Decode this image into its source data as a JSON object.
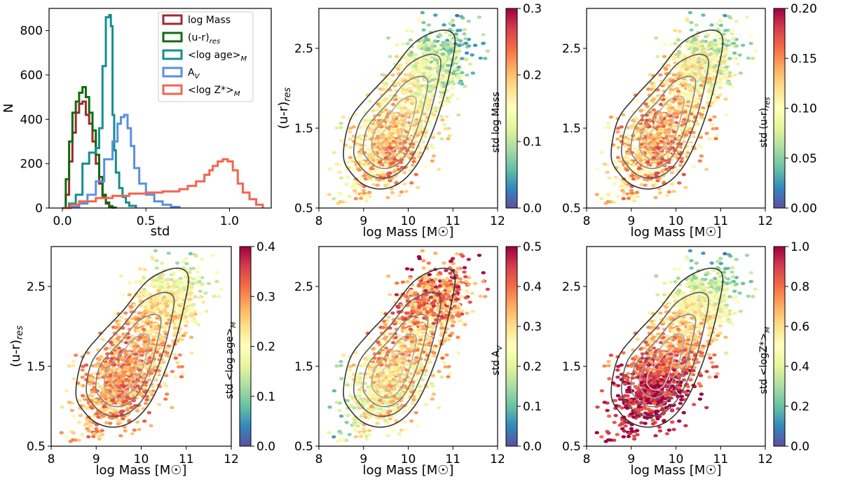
{
  "chart_data": [
    {
      "id": "hist",
      "type": "histogram",
      "xlabel": "std",
      "ylabel": "N",
      "xlim": [
        -0.08,
        1.25
      ],
      "ylim": [
        0,
        900
      ],
      "xticks": [
        "0.0",
        "0.5",
        "1.0"
      ],
      "xtick_values": [
        0.0,
        0.5,
        1.0
      ],
      "yticks": [
        "0",
        "200",
        "400",
        "600",
        "800"
      ],
      "ytick_values": [
        0,
        200,
        400,
        600,
        800
      ],
      "legend_position": "top-right",
      "series": [
        {
          "name": "log Mass",
          "legend": {
            "base": "log Mass",
            "sub": "",
            "tail": ""
          },
          "color": "#9e2a2b",
          "x": [
            0.0,
            0.02,
            0.04,
            0.06,
            0.08,
            0.1,
            0.12,
            0.14,
            0.16,
            0.18,
            0.2,
            0.22,
            0.24,
            0.26,
            0.28,
            0.3
          ],
          "y": [
            0,
            60,
            210,
            340,
            430,
            470,
            480,
            420,
            380,
            300,
            200,
            110,
            50,
            20,
            5,
            0
          ]
        },
        {
          "name": "(u-r)res",
          "legend": {
            "base": "(u-r)",
            "sub": "res",
            "tail": ""
          },
          "color": "#0f6b0f",
          "x": [
            0.0,
            0.02,
            0.04,
            0.06,
            0.08,
            0.1,
            0.12,
            0.14,
            0.16,
            0.18,
            0.2,
            0.22,
            0.24,
            0.26,
            0.28,
            0.3,
            0.32
          ],
          "y": [
            0,
            130,
            300,
            430,
            480,
            520,
            545,
            500,
            430,
            350,
            240,
            140,
            60,
            25,
            8,
            2,
            0
          ]
        },
        {
          "name": "<log age>M",
          "legend": {
            "base": "<log age>",
            "sub": "M",
            "tail": ""
          },
          "color": "#148f8f",
          "x": [
            0.0,
            0.04,
            0.08,
            0.12,
            0.16,
            0.2,
            0.22,
            0.24,
            0.26,
            0.28,
            0.29,
            0.3,
            0.31,
            0.32,
            0.34,
            0.36,
            0.38,
            0.4,
            0.44
          ],
          "y": [
            0,
            20,
            60,
            200,
            250,
            270,
            360,
            640,
            860,
            870,
            820,
            420,
            260,
            160,
            90,
            50,
            25,
            10,
            0
          ]
        },
        {
          "name": "AV",
          "legend": {
            "base": "A",
            "sub": "V",
            "tail": ""
          },
          "color": "#5b8fe0",
          "x": [
            0.0,
            0.05,
            0.1,
            0.15,
            0.2,
            0.25,
            0.3,
            0.33,
            0.35,
            0.37,
            0.39,
            0.41,
            0.43,
            0.46,
            0.5,
            0.55,
            0.6,
            0.65,
            0.7
          ],
          "y": [
            0,
            5,
            20,
            60,
            120,
            220,
            300,
            380,
            410,
            420,
            360,
            280,
            180,
            110,
            60,
            30,
            15,
            5,
            0
          ]
        },
        {
          "name": "<log Z*>M",
          "legend": {
            "base": "<log Z",
            "sub": "",
            "tail": "*>",
            "sub2": "M"
          },
          "color": "#f5644e",
          "x": [
            0.0,
            0.05,
            0.1,
            0.2,
            0.3,
            0.4,
            0.5,
            0.6,
            0.7,
            0.75,
            0.8,
            0.85,
            0.88,
            0.9,
            0.93,
            0.96,
            0.99,
            1.02,
            1.05,
            1.08,
            1.12,
            1.16,
            1.2
          ],
          "y": [
            0,
            15,
            30,
            45,
            55,
            65,
            70,
            75,
            85,
            100,
            120,
            150,
            170,
            190,
            210,
            220,
            210,
            170,
            110,
            70,
            40,
            15,
            0
          ]
        }
      ]
    },
    {
      "id": "p2",
      "type": "scatter",
      "xlabel": "log Mass [M☉]",
      "ylabel": "(u-r)res",
      "ylabel_base": "(u-r)",
      "ylabel_sub": "res",
      "xlim": [
        8,
        12
      ],
      "ylim": [
        0.5,
        3.0
      ],
      "xticks": [
        "8",
        "9",
        "10",
        "11",
        "12"
      ],
      "yticks": [
        "0.5",
        "1.5",
        "2.5"
      ],
      "colorbar": {
        "label": "std log Mass",
        "label_base": "std log Mass",
        "label_sub": "",
        "label_tail": "",
        "ticks": [
          "0.0",
          "0.1",
          "0.2",
          "0.3"
        ],
        "tick_values": [
          0.0,
          0.1,
          0.2,
          0.3
        ],
        "min": 0,
        "max": 0.3
      },
      "color_model": "mass",
      "show_ylabel": true
    },
    {
      "id": "p3",
      "type": "scatter",
      "xlabel": "log Mass [M☉]",
      "ylabel": "",
      "xlim": [
        8,
        12
      ],
      "ylim": [
        0.5,
        3.0
      ],
      "xticks": [
        "8",
        "9",
        "10",
        "11",
        "12"
      ],
      "yticks": [
        "0.5",
        "1.5",
        "2.5"
      ],
      "colorbar": {
        "label": "std (u-r)res",
        "label_base": "std (u-r)",
        "label_sub": "res",
        "label_tail": "",
        "ticks": [
          "0.00",
          "0.05",
          "0.10",
          "0.15",
          "0.20"
        ],
        "tick_values": [
          0,
          0.05,
          0.1,
          0.15,
          0.2
        ],
        "min": 0,
        "max": 0.2
      },
      "color_model": "ur",
      "show_ylabel": false
    },
    {
      "id": "p4",
      "type": "scatter",
      "xlabel": "log Mass [M☉]",
      "ylabel": "(u-r)res",
      "ylabel_base": "(u-r)",
      "ylabel_sub": "res",
      "xlim": [
        8,
        12
      ],
      "ylim": [
        0.5,
        3.0
      ],
      "xticks": [
        "8",
        "9",
        "10",
        "11",
        "12"
      ],
      "yticks": [
        "0.5",
        "1.5",
        "2.5"
      ],
      "colorbar": {
        "label": "std <log age>M",
        "label_base": "std <log age>",
        "label_sub": "M",
        "label_tail": "",
        "ticks": [
          "0.0",
          "0.1",
          "0.2",
          "0.3",
          "0.4"
        ],
        "tick_values": [
          0,
          0.1,
          0.2,
          0.3,
          0.4
        ],
        "min": 0,
        "max": 0.4
      },
      "color_model": "age",
      "show_ylabel": true
    },
    {
      "id": "p5",
      "type": "scatter",
      "xlabel": "log Mass [M☉]",
      "ylabel": "",
      "xlim": [
        8,
        12
      ],
      "ylim": [
        0.5,
        3.0
      ],
      "xticks": [
        "8",
        "9",
        "10",
        "11",
        "12"
      ],
      "yticks": [
        "0.5",
        "1.5",
        "2.5"
      ],
      "colorbar": {
        "label": "std AV",
        "label_base": "std A",
        "label_sub": "V",
        "label_tail": "",
        "ticks": [
          "0.0",
          "0.1",
          "0.2",
          "0.3",
          "0.4",
          "0.5"
        ],
        "tick_values": [
          0,
          0.1,
          0.2,
          0.3,
          0.4,
          0.5
        ],
        "min": 0,
        "max": 0.5
      },
      "color_model": "av",
      "show_ylabel": false
    },
    {
      "id": "p6",
      "type": "scatter",
      "xlabel": "log Mass [M☉]",
      "ylabel": "",
      "xlim": [
        8,
        12
      ],
      "ylim": [
        0.5,
        3.0
      ],
      "xticks": [
        "8",
        "9",
        "10",
        "11",
        "12"
      ],
      "yticks": [
        "0.5",
        "1.5",
        "2.5"
      ],
      "colorbar": {
        "label": "std <logZ*>M",
        "label_base": "std <logZ",
        "label_sub": "",
        "label_tail": "*>",
        "label_sub2": "M",
        "ticks": [
          "0.0",
          "0.2",
          "0.4",
          "0.6",
          "0.8",
          "1.0"
        ],
        "tick_values": [
          0,
          0.2,
          0.4,
          0.6,
          0.8,
          1.0
        ],
        "min": 0,
        "max": 1.0
      },
      "color_model": "z",
      "show_ylabel": false
    }
  ],
  "contours": {
    "center": [
      9.6,
      1.35
    ],
    "levels": [
      1.0,
      0.78,
      0.58,
      0.4,
      0.24
    ],
    "colors": [
      "#333333",
      "#5a5a5a",
      "#808080",
      "#a6a6a6",
      "#cccccc"
    ],
    "shape": [
      [
        8.55,
        1.15
      ],
      [
        8.75,
        0.92
      ],
      [
        9.05,
        0.78
      ],
      [
        9.45,
        0.74
      ],
      [
        9.85,
        0.83
      ],
      [
        10.2,
        1.05
      ],
      [
        10.5,
        1.4
      ],
      [
        10.75,
        1.8
      ],
      [
        10.95,
        2.25
      ],
      [
        11.05,
        2.6
      ],
      [
        10.9,
        2.72
      ],
      [
        10.55,
        2.7
      ],
      [
        10.1,
        2.55
      ],
      [
        9.6,
        2.2
      ],
      [
        9.1,
        1.9
      ],
      [
        8.7,
        1.6
      ]
    ]
  }
}
